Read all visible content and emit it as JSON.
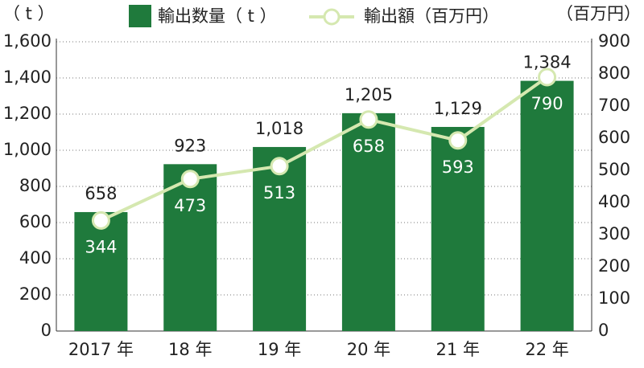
{
  "chart_data": {
    "type": "combo",
    "categories": [
      "2017 年",
      "18 年",
      "19 年",
      "20 年",
      "21 年",
      "22 年"
    ],
    "series": [
      {
        "name": "輸出数量（ t ）",
        "type": "bar",
        "color": "#1f7a3c",
        "values": [
          658,
          923,
          1018,
          1205,
          1129,
          1384
        ],
        "value_labels": [
          "658",
          "923",
          "1,018",
          "1,205",
          "1,129",
          "1,384"
        ]
      },
      {
        "name": "輸出額（百万円）",
        "type": "line",
        "axis": "y2",
        "color": "#d5e8b0",
        "values": [
          344,
          473,
          513,
          658,
          593,
          790
        ]
      }
    ],
    "ylabel": "（ t ）",
    "y2label": "（百万円）",
    "ylim": [
      0,
      1600
    ],
    "yticks": [
      0,
      200,
      400,
      600,
      800,
      {
        "value": 1000,
        "label": "1,000"
      },
      {
        "value": 1200,
        "label": "1,200"
      },
      {
        "value": 1400,
        "label": "1,400"
      },
      {
        "value": 1600,
        "label": "1,600"
      }
    ],
    "y2lim": [
      0,
      900
    ],
    "y2ticks": [
      0,
      100,
      200,
      300,
      400,
      500,
      600,
      700,
      800,
      900
    ],
    "grid": true
  }
}
